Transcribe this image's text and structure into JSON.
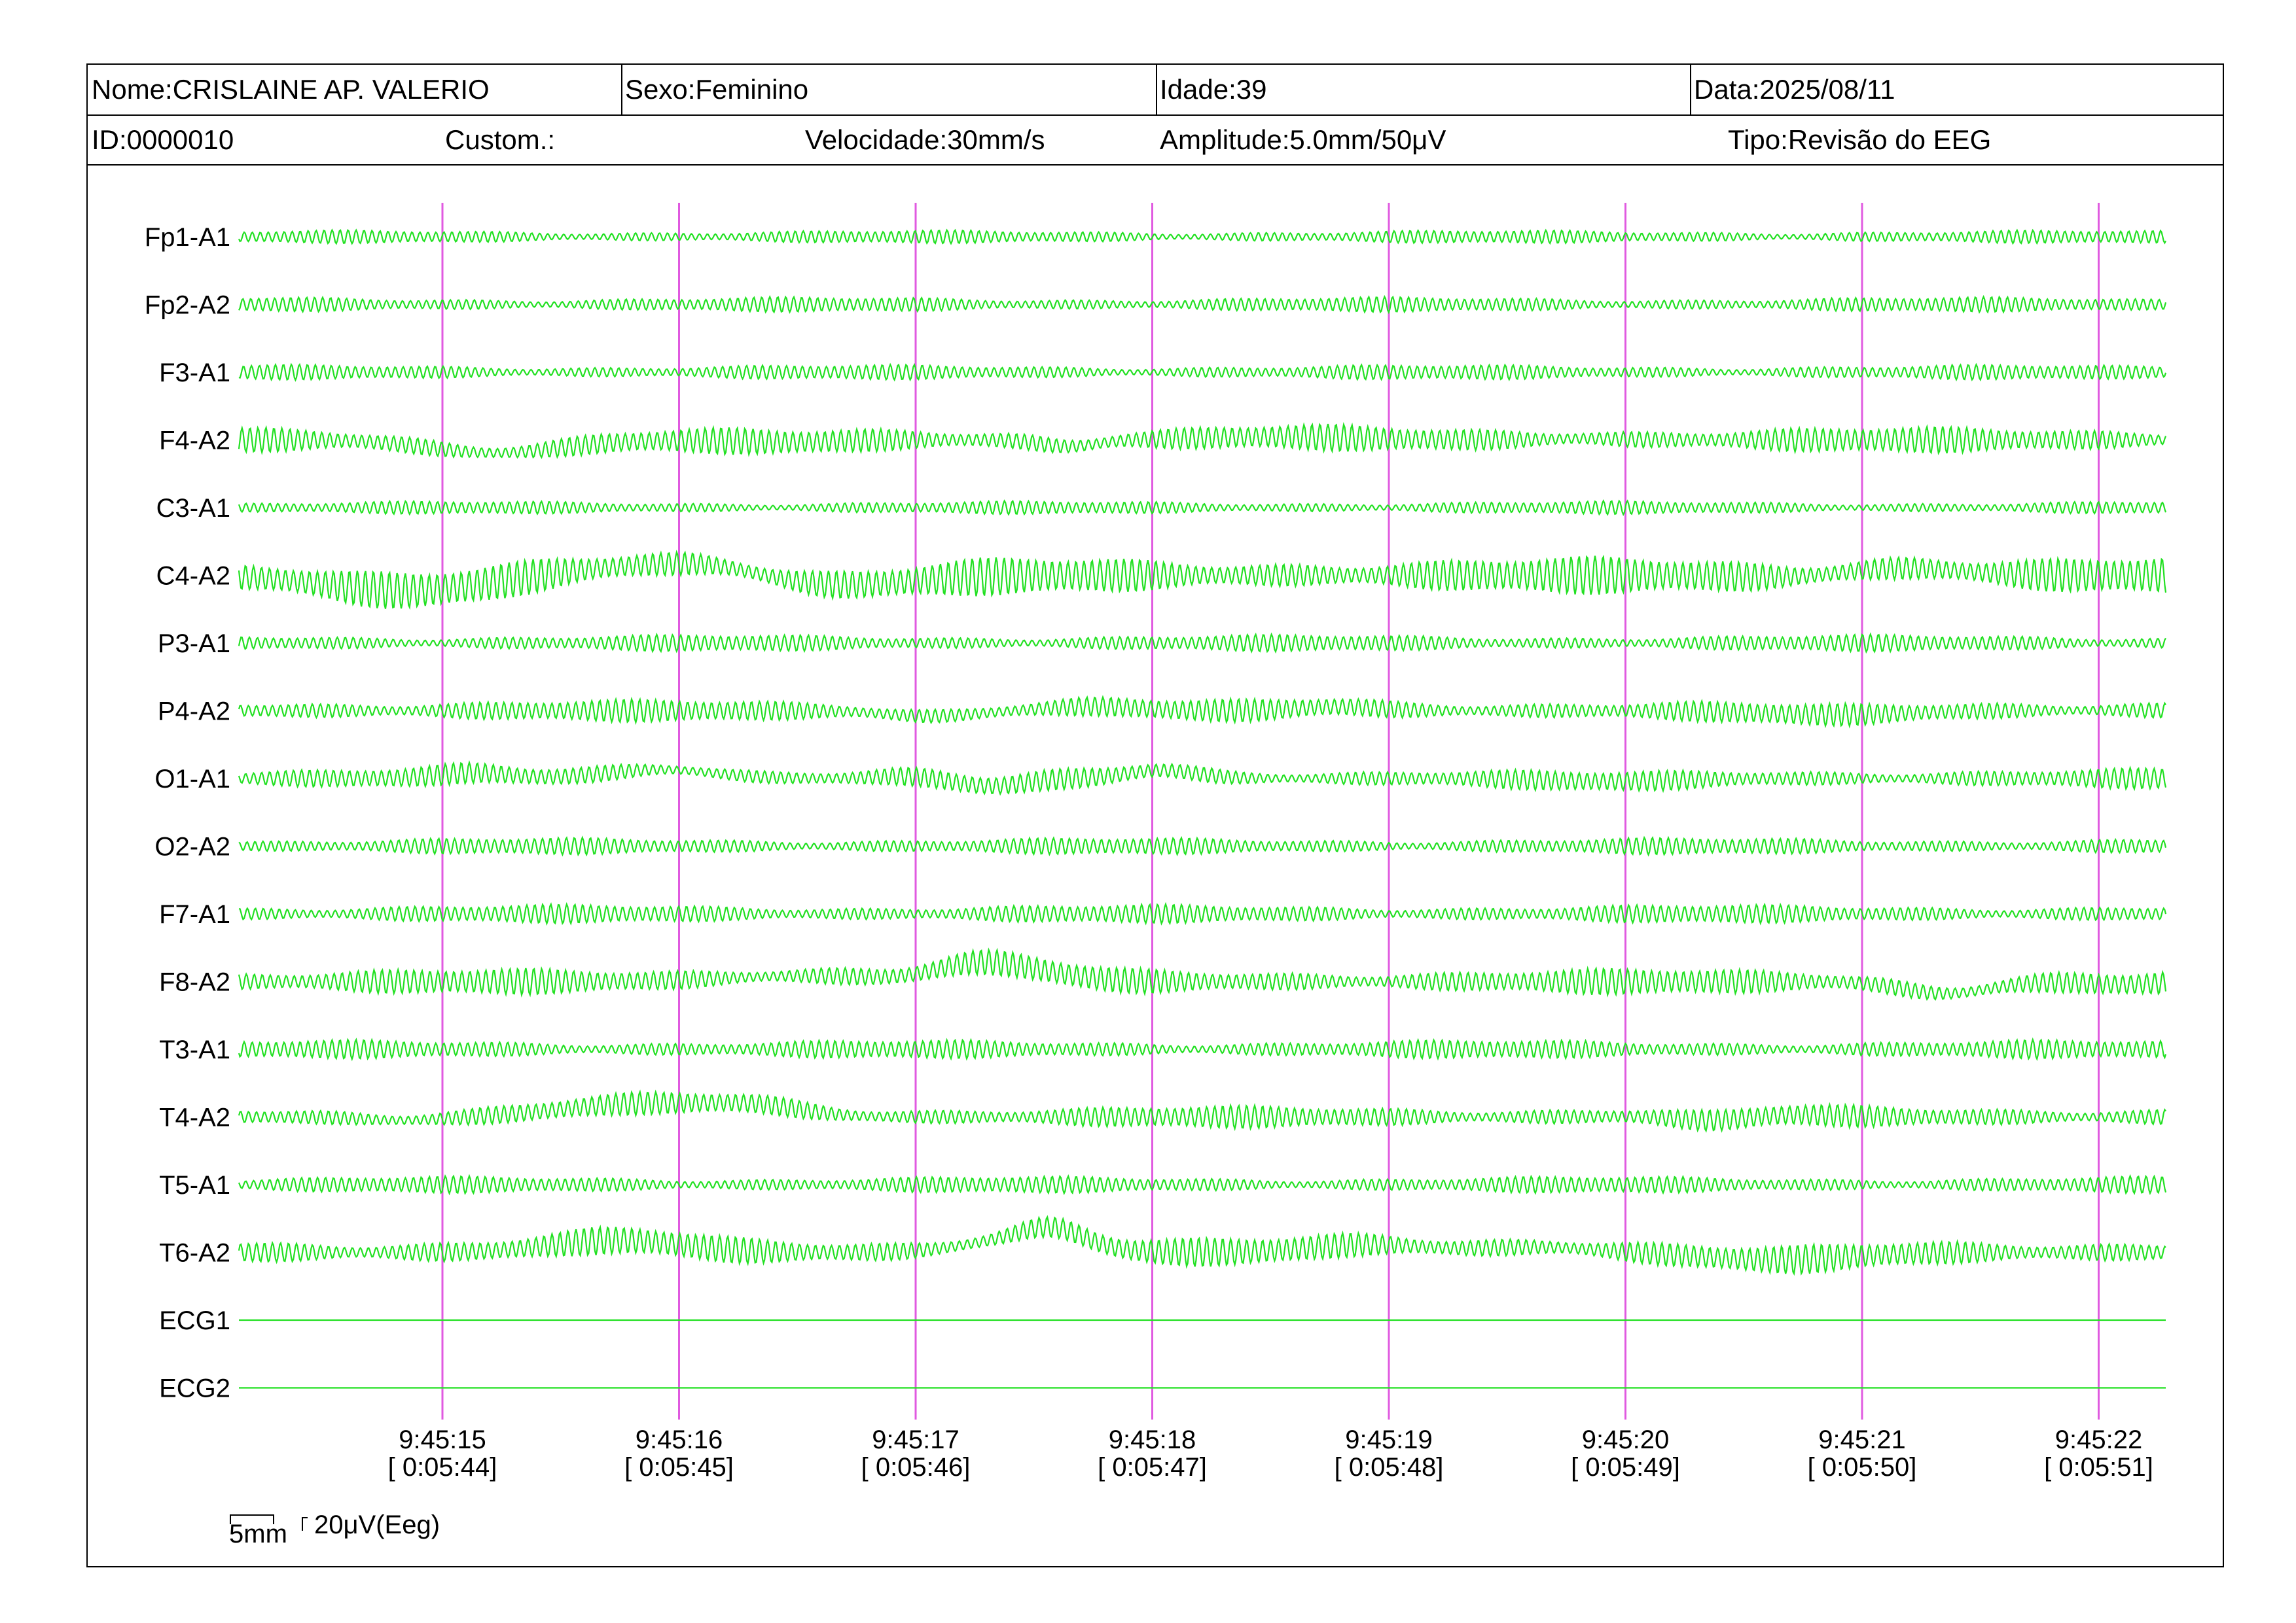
{
  "header": {
    "nome": "Nome:CRISLAINE AP. VALERIO",
    "sexo": "Sexo:Feminino",
    "idade": "Idade:39",
    "data": "Data:2025/08/11",
    "id": "ID:0000010",
    "custom": "Custom.:",
    "velocidade": "Velocidade:30mm/s",
    "amplitude": "Amplitude:5.0mm/50μV",
    "tipo": "Tipo:Revisão do EEG"
  },
  "scale": {
    "time_label": "5mm",
    "amp_label": "20μV(Eeg)"
  },
  "colors": {
    "trace": "#22e022",
    "second_marker": "#e05ae0",
    "text": "#000000"
  },
  "chart_data": {
    "type": "line",
    "channels": [
      "Fp1-A1",
      "Fp2-A2",
      "F3-A1",
      "F4-A2",
      "C3-A1",
      "C4-A2",
      "P3-A1",
      "P4-A2",
      "O1-A1",
      "O2-A2",
      "F7-A1",
      "F8-A2",
      "T3-A1",
      "T4-A2",
      "T5-A1",
      "T6-A2",
      "ECG1",
      "ECG2"
    ],
    "time_markers": [
      {
        "clock": "9:45:15",
        "elapsed": "[ 0:05:44]"
      },
      {
        "clock": "9:45:16",
        "elapsed": "[ 0:05:45]"
      },
      {
        "clock": "9:45:17",
        "elapsed": "[ 0:05:46]"
      },
      {
        "clock": "9:45:18",
        "elapsed": "[ 0:05:47]"
      },
      {
        "clock": "9:45:19",
        "elapsed": "[ 0:05:48]"
      },
      {
        "clock": "9:45:20",
        "elapsed": "[ 0:05:49]"
      },
      {
        "clock": "9:45:21",
        "elapsed": "[ 0:05:50]"
      },
      {
        "clock": "9:45:22",
        "elapsed": "[ 0:05:51]"
      }
    ],
    "speed_mm_per_s": 30,
    "sensitivity": "5.0mm/50μV",
    "grid": false,
    "legend": "none",
    "series_behavior": [
      {
        "name": "Fp1-A1",
        "amplitude": 0.35
      },
      {
        "name": "Fp2-A2",
        "amplitude": 0.4
      },
      {
        "name": "F3-A1",
        "amplitude": 0.4
      },
      {
        "name": "F4-A2",
        "amplitude": 0.7
      },
      {
        "name": "C3-A1",
        "amplitude": 0.35
      },
      {
        "name": "C4-A2",
        "amplitude": 1.0
      },
      {
        "name": "P3-A1",
        "amplitude": 0.45
      },
      {
        "name": "P4-A2",
        "amplitude": 0.6
      },
      {
        "name": "O1-A1",
        "amplitude": 0.55
      },
      {
        "name": "O2-A2",
        "amplitude": 0.45
      },
      {
        "name": "F7-A1",
        "amplitude": 0.5
      },
      {
        "name": "F8-A2",
        "amplitude": 0.7
      },
      {
        "name": "T3-A1",
        "amplitude": 0.5
      },
      {
        "name": "T4-A2",
        "amplitude": 0.6
      },
      {
        "name": "T5-A1",
        "amplitude": 0.45
      },
      {
        "name": "T6-A2",
        "amplitude": 0.75
      },
      {
        "name": "ECG1",
        "amplitude": 0.0
      },
      {
        "name": "ECG2",
        "amplitude": 0.0
      }
    ]
  }
}
